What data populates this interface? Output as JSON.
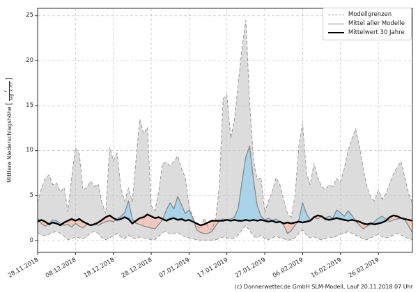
{
  "footer": {
    "credit": "(c) Donnerwetter.de GmbH SLM-Modell, Lauf 20.11.2018 07 Uhr"
  },
  "chart_data": {
    "type": "line",
    "title": "",
    "ylabel": "Mittlere Niederschlagshöhe",
    "unit_numerator": "l",
    "unit_denominator": "Tag × m²",
    "ylim": [
      -1.3,
      25.8
    ],
    "y_ticks": [
      0,
      5,
      10,
      15,
      20,
      25
    ],
    "x_tick_labels": [
      "28.11.2018",
      "08.12.2018",
      "18.12.2018",
      "28.12.2018",
      "07.01.2019",
      "17.01.2019",
      "27.01.2019",
      "06.02.2019",
      "16.02.2019",
      "26.02.2019"
    ],
    "x_tick_days": [
      0,
      10,
      20,
      30,
      40,
      50,
      60,
      70,
      80,
      90
    ],
    "days_total": 100,
    "grid": true,
    "legend_position": "upper right",
    "legend": [
      {
        "label": "Modellgrenzen",
        "style": "dashed-gray"
      },
      {
        "label": "Mittel aller Modelle",
        "style": "solid-gray"
      },
      {
        "label": "Mittelwert 30 Jahre",
        "style": "thick-black"
      }
    ],
    "colors": {
      "band_fill": "#dcdcdc",
      "band_edge": "#9a9a9a",
      "above_mean_fill": "#a9d3e9",
      "below_mean_fill": "#f3c8bc",
      "model_mean_line": "#878787",
      "mean_30y_line": "#000000",
      "grid": "#c7c7c7",
      "spine": "#262626"
    },
    "series": [
      {
        "name": "Modellgrenzen (Maximum)",
        "values": [
          4.2,
          5.8,
          6.9,
          7.3,
          6.2,
          6.4,
          5.4,
          5.9,
          3.2,
          7.0,
          10.3,
          9.7,
          5.6,
          5.9,
          6.6,
          6.0,
          6.3,
          4.2,
          3.0,
          10.4,
          8.9,
          9.7,
          5.8,
          4.4,
          5.8,
          4.3,
          9.0,
          13.5,
          11.9,
          12.6,
          3.9,
          3.3,
          5.5,
          8.6,
          8.7,
          8.3,
          8.8,
          9.4,
          8.0,
          7.0,
          3.9,
          2.6,
          1.6,
          1.3,
          2.5,
          1.5,
          1.2,
          2.3,
          6.0,
          15.8,
          16.2,
          11.4,
          13.5,
          17.5,
          21.5,
          24.5,
          15.5,
          9.0,
          6.8,
          7.0,
          3.1,
          4.4,
          5.5,
          7.0,
          6.2,
          4.5,
          3.0,
          2.6,
          5.0,
          10.5,
          13.0,
          7.5,
          6.2,
          8.6,
          7.0,
          6.0,
          5.7,
          6.2,
          6.0,
          6.9,
          6.5,
          8.0,
          10.0,
          11.3,
          12.4,
          10.5,
          8.0,
          6.0,
          4.8,
          4.4,
          5.6,
          4.6,
          5.2,
          6.4,
          7.4,
          8.2,
          8.8,
          7.0,
          5.2,
          4.2
        ]
      },
      {
        "name": "Modellgrenzen (Minimum)",
        "values": [
          0.9,
          0.6,
          0.5,
          0.7,
          0.9,
          1.0,
          0.8,
          0.5,
          0.1,
          0.2,
          0.4,
          0.3,
          0.2,
          0.4,
          0.9,
          1.0,
          0.8,
          0.3,
          0.1,
          0.3,
          0.5,
          0.8,
          0.4,
          0.2,
          0.6,
          0.3,
          0.2,
          0.4,
          0.3,
          0.2,
          0.1,
          0.1,
          0.5,
          0.9,
          1.0,
          0.7,
          0.8,
          0.9,
          0.6,
          0.4,
          0.3,
          0.2,
          0.1,
          0.05,
          0.05,
          0.05,
          0.05,
          0.1,
          0.2,
          0.4,
          0.3,
          0.2,
          0.3,
          0.6,
          1.2,
          1.7,
          1.1,
          0.5,
          0.3,
          0.6,
          0.2,
          0.1,
          0.3,
          0.5,
          0.3,
          0.2,
          0.05,
          0.1,
          0.3,
          0.8,
          1.2,
          0.6,
          0.3,
          0.4,
          0.2,
          0.1,
          0.2,
          0.4,
          0.3,
          0.5,
          0.7,
          0.8,
          1.0,
          0.8,
          0.6,
          0.4,
          0.2,
          0.1,
          0.3,
          0.5,
          0.7,
          0.4,
          0.3,
          0.4,
          0.6,
          0.8,
          0.6,
          0.4,
          0.2,
          0.1
        ]
      },
      {
        "name": "Mittel aller Modelle",
        "values": [
          2.5,
          1.9,
          1.6,
          1.9,
          2.3,
          2.2,
          1.9,
          1.7,
          1.8,
          1.5,
          1.9,
          1.6,
          1.4,
          1.8,
          1.7,
          1.9,
          1.7,
          1.9,
          2.1,
          2.2,
          2.1,
          2.4,
          2.7,
          3.1,
          4.4,
          2.4,
          1.9,
          1.8,
          1.6,
          1.5,
          1.4,
          1.3,
          1.8,
          2.3,
          3.4,
          4.2,
          3.5,
          4.9,
          4.0,
          3.0,
          3.4,
          2.5,
          1.2,
          0.9,
          0.8,
          0.8,
          1.0,
          1.6,
          2.2,
          2.4,
          2.3,
          2.4,
          2.6,
          3.6,
          6.6,
          9.3,
          10.5,
          6.8,
          3.9,
          2.7,
          2.3,
          2.5,
          2.2,
          2.4,
          2.1,
          1.7,
          0.8,
          1.1,
          1.7,
          2.3,
          4.2,
          3.0,
          2.3,
          2.6,
          2.4,
          2.7,
          2.5,
          2.7,
          2.5,
          3.4,
          3.1,
          2.7,
          3.3,
          2.8,
          2.2,
          1.7,
          1.3,
          1.6,
          1.8,
          2.1,
          2.5,
          2.7,
          2.4,
          2.1,
          2.3,
          2.4,
          2.5,
          2.3,
          1.6,
          0.9
        ]
      },
      {
        "name": "Mittelwert 30 Jahre",
        "values": [
          2.1,
          2.3,
          2.1,
          1.8,
          2.0,
          1.9,
          1.7,
          2.0,
          2.2,
          2.4,
          2.2,
          2.4,
          2.1,
          1.9,
          1.7,
          1.8,
          2.0,
          2.3,
          2.6,
          2.8,
          2.5,
          2.3,
          2.4,
          2.6,
          2.4,
          1.9,
          2.2,
          2.5,
          2.6,
          2.9,
          2.7,
          2.5,
          2.6,
          2.4,
          2.2,
          2.4,
          2.5,
          2.3,
          2.4,
          2.2,
          2.3,
          2.1,
          1.9,
          1.7,
          1.8,
          2.0,
          2.2,
          2.2,
          2.2,
          2.2,
          2.3,
          2.2,
          2.3,
          2.2,
          2.2,
          2.3,
          2.2,
          2.3,
          2.2,
          2.3,
          2.2,
          2.1,
          2.2,
          2.0,
          2.1,
          1.9,
          2.0,
          1.9,
          2.0,
          2.1,
          2.0,
          2.1,
          2.2,
          2.6,
          2.8,
          2.7,
          2.4,
          2.3,
          2.4,
          2.5,
          2.4,
          2.3,
          2.2,
          2.3,
          2.2,
          2.1,
          1.9,
          1.8,
          1.9,
          1.8,
          1.9,
          2.0,
          2.2,
          2.6,
          2.8,
          2.7,
          2.5,
          2.4,
          2.3,
          2.2
        ]
      }
    ]
  }
}
